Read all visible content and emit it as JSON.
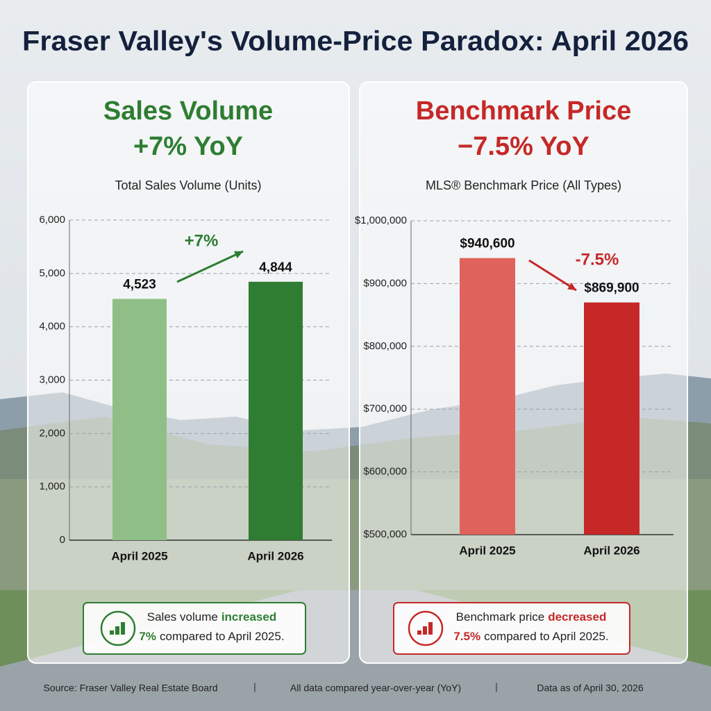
{
  "title": "Fraser Valley's Volume-Price Paradox: April 2026",
  "chart_data": [
    {
      "type": "bar",
      "title": "Sales Volume",
      "subtitle": "+7% YoY",
      "ylabel": "Total Sales Volume (Units)",
      "color": "#2e7d32",
      "categories": [
        "April 2025",
        "April 2026"
      ],
      "values": [
        4523,
        4844
      ],
      "value_labels": [
        "4,523",
        "4,844"
      ],
      "colors": [
        "#8fbf87",
        "#2e7d32"
      ],
      "ylim": [
        0,
        6000
      ],
      "yticks": [
        0,
        {
          "value": 1000,
          "label": "1,000"
        },
        {
          "value": 2000,
          "label": "2,000"
        },
        {
          "value": 3000,
          "label": "3,000"
        },
        {
          "value": 4000,
          "label": "4,000"
        },
        {
          "value": 5000,
          "label": "5,000"
        },
        {
          "value": 6000,
          "label": "6,000"
        }
      ],
      "grid": true,
      "annotation": "+7%",
      "summary": {
        "lead": "Sales volume",
        "verb": "increased",
        "amount": "7%",
        "rest": "compared to April 2025."
      }
    },
    {
      "type": "bar",
      "title": "Benchmark Price",
      "subtitle": "−7.5% YoY",
      "ylabel": "MLS® Benchmark Price (All Types)",
      "color": "#c62828",
      "categories": [
        "April 2025",
        "April 2026"
      ],
      "values": [
        940600,
        869900
      ],
      "value_labels": [
        "$940,600",
        "$869,900"
      ],
      "colors": [
        "#e0625c",
        "#c62828"
      ],
      "ylim": [
        500000,
        1000000
      ],
      "yticks": [
        {
          "value": 500000,
          "label": "$500,000"
        },
        {
          "value": 600000,
          "label": "$600,000"
        },
        {
          "value": 700000,
          "label": "$700,000"
        },
        {
          "value": 800000,
          "label": "$800,000"
        },
        {
          "value": 900000,
          "label": "$900,000"
        },
        {
          "value": 1000000,
          "label": "$1,000,000"
        }
      ],
      "grid": true,
      "annotation": "-7.5%",
      "summary": {
        "lead": "Benchmark price",
        "verb": "decreased",
        "amount": "7.5%",
        "rest": "compared to April 2025."
      }
    }
  ],
  "footer": [
    "Source: Fraser Valley Real Estate Board",
    "All data compared year-over-year (YoY)",
    "Data as of April 30, 2026"
  ]
}
